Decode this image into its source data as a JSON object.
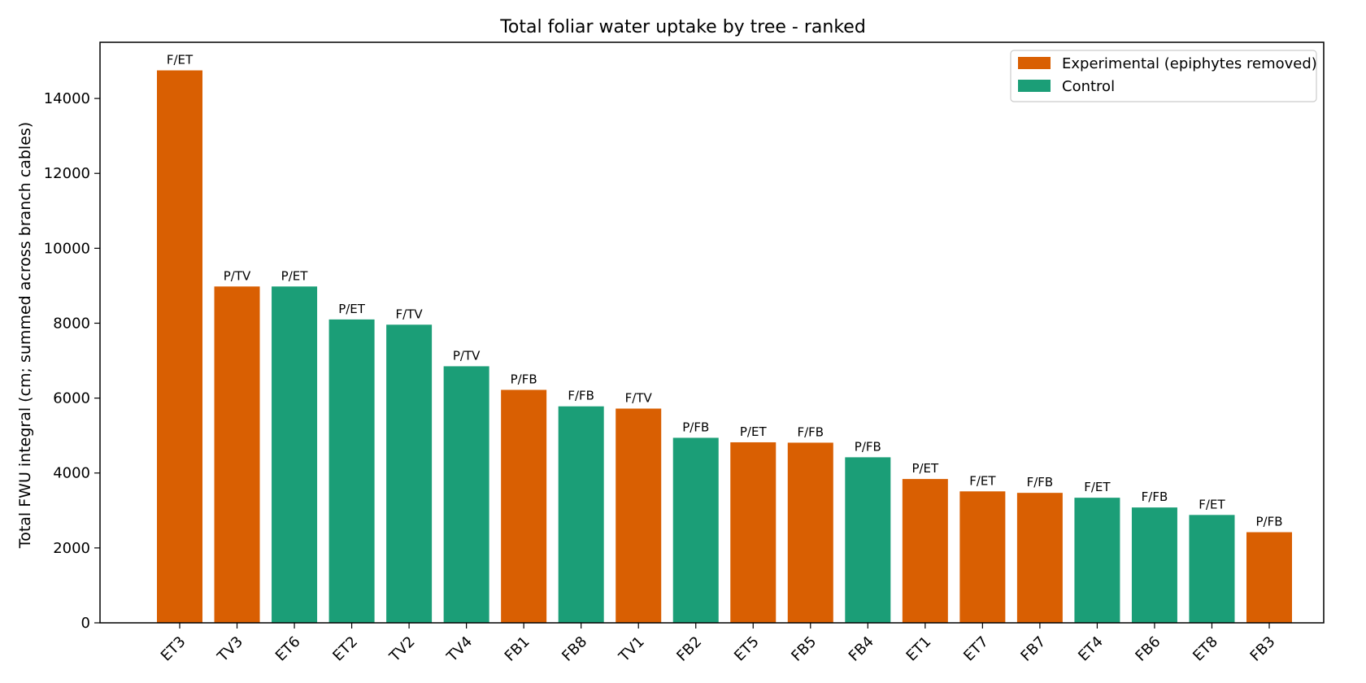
{
  "chart_data": {
    "type": "bar",
    "title": "Total foliar water uptake by tree - ranked",
    "xlabel": "",
    "ylabel": "Total FWU integral (cm; summed across branch cables)",
    "ylim": [
      0,
      15500
    ],
    "yticks": [
      0,
      2000,
      4000,
      6000,
      8000,
      10000,
      12000,
      14000
    ],
    "grid": false,
    "legend_position": "top-right",
    "groups": {
      "experimental": {
        "name": "Experimental (epiphytes removed)",
        "color": "#d95f02"
      },
      "control": {
        "name": "Control",
        "color": "#1b9e77"
      }
    },
    "bars": [
      {
        "category": "ET3",
        "value": 14750,
        "group": "experimental",
        "label": "F/ET"
      },
      {
        "category": "TV3",
        "value": 8980,
        "group": "experimental",
        "label": "P/TV"
      },
      {
        "category": "ET6",
        "value": 8980,
        "group": "control",
        "label": "P/ET"
      },
      {
        "category": "ET2",
        "value": 8100,
        "group": "control",
        "label": "P/ET"
      },
      {
        "category": "TV2",
        "value": 7960,
        "group": "control",
        "label": "F/TV"
      },
      {
        "category": "TV4",
        "value": 6850,
        "group": "control",
        "label": "P/TV"
      },
      {
        "category": "FB1",
        "value": 6220,
        "group": "experimental",
        "label": "P/FB"
      },
      {
        "category": "FB8",
        "value": 5780,
        "group": "control",
        "label": "F/FB"
      },
      {
        "category": "TV1",
        "value": 5720,
        "group": "experimental",
        "label": "F/TV"
      },
      {
        "category": "FB2",
        "value": 4940,
        "group": "control",
        "label": "P/FB"
      },
      {
        "category": "ET5",
        "value": 4820,
        "group": "experimental",
        "label": "P/ET"
      },
      {
        "category": "FB5",
        "value": 4810,
        "group": "experimental",
        "label": "F/FB"
      },
      {
        "category": "FB4",
        "value": 4420,
        "group": "control",
        "label": "P/FB"
      },
      {
        "category": "ET1",
        "value": 3840,
        "group": "experimental",
        "label": "P/ET"
      },
      {
        "category": "ET7",
        "value": 3510,
        "group": "experimental",
        "label": "F/ET"
      },
      {
        "category": "FB7",
        "value": 3470,
        "group": "experimental",
        "label": "F/FB"
      },
      {
        "category": "ET4",
        "value": 3340,
        "group": "control",
        "label": "F/ET"
      },
      {
        "category": "FB6",
        "value": 3080,
        "group": "control",
        "label": "F/FB"
      },
      {
        "category": "ET8",
        "value": 2880,
        "group": "control",
        "label": "F/ET"
      },
      {
        "category": "FB3",
        "value": 2420,
        "group": "experimental",
        "label": "P/FB"
      }
    ]
  }
}
